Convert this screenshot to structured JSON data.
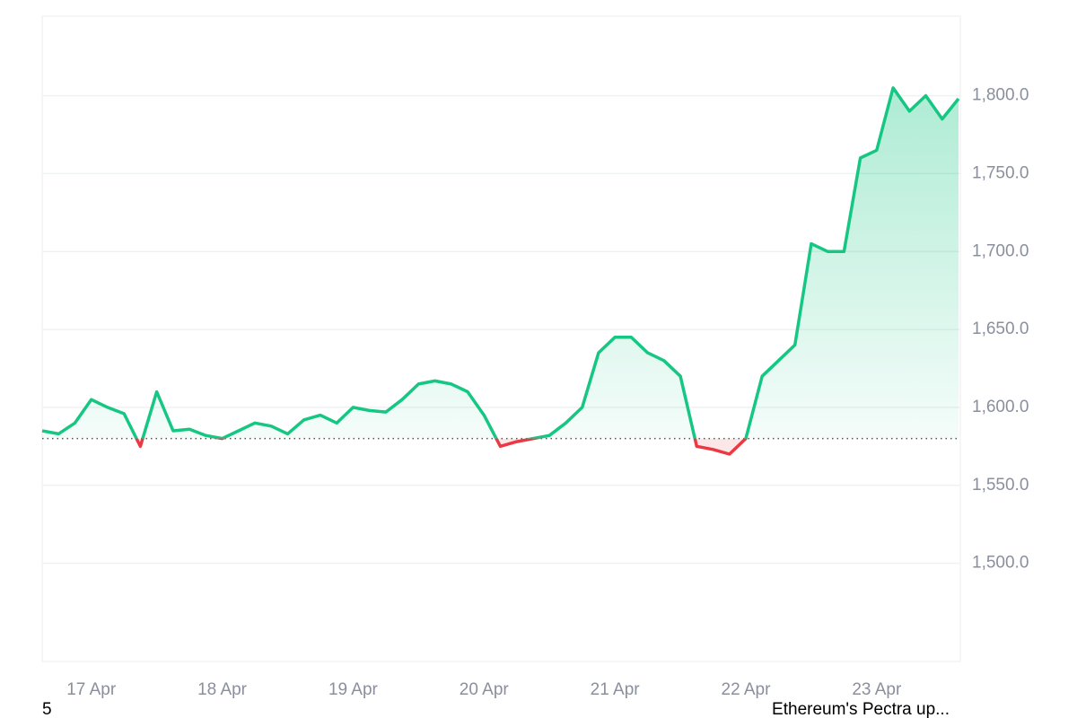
{
  "chart_data": {
    "type": "line",
    "categories": [
      null,
      null,
      null,
      "17 Apr",
      null,
      null,
      null,
      null,
      null,
      null,
      null,
      "18 Apr",
      null,
      null,
      null,
      null,
      null,
      null,
      null,
      "19 Apr",
      null,
      null,
      null,
      null,
      null,
      null,
      null,
      "20 Apr",
      null,
      null,
      null,
      null,
      null,
      null,
      null,
      "21 Apr",
      null,
      null,
      null,
      null,
      null,
      null,
      null,
      "22 Apr",
      null,
      null,
      null,
      null,
      null,
      null,
      null,
      "23 Apr",
      null,
      null,
      null,
      null,
      null
    ],
    "series": [
      {
        "color": "#16c784",
        "below_color": "#ea3943",
        "values": [
          1585,
          1583,
          1590,
          1605,
          1600,
          1596,
          1575,
          1610,
          1585,
          1586,
          1582,
          1580,
          1585,
          1590,
          1588,
          1583,
          1592,
          1595,
          1590,
          1600,
          1598,
          1597,
          1605,
          1615,
          1617,
          1615,
          1610,
          1595,
          1575,
          1578,
          1580,
          1582,
          1590,
          1600,
          1635,
          1645,
          1645,
          1635,
          1630,
          1620,
          1575,
          1573,
          1570,
          1580,
          1620,
          1630,
          1640,
          1705,
          1700,
          1700,
          1760,
          1765,
          1805,
          1790,
          1800,
          1785,
          1798
        ]
      }
    ],
    "baseline": 1580,
    "ylim": [
      1437,
      1851
    ],
    "yticks": [
      {
        "value": 1500,
        "label": "1,500.0"
      },
      {
        "value": 1550,
        "label": "1,550.0"
      },
      {
        "value": 1600,
        "label": "1,600.0"
      },
      {
        "value": 1650,
        "label": "1,650.0"
      },
      {
        "value": 1700,
        "label": "1,700.0"
      },
      {
        "value": 1750,
        "label": "1,750.0"
      },
      {
        "value": 1800,
        "label": "1,800.0"
      }
    ],
    "grid": true,
    "annotations": [
      "5",
      "Ethereum's Pectra up..."
    ]
  }
}
